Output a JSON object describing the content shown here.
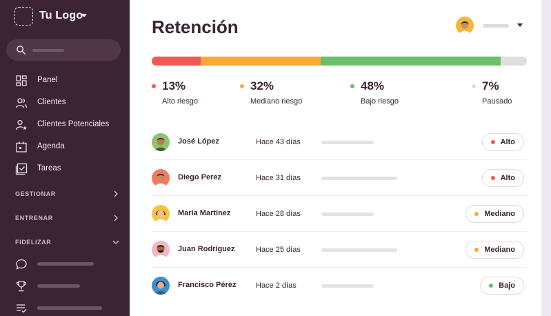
{
  "colors": {
    "sidebar_bg": "#3b2433",
    "high": "#ef5a57",
    "medium": "#fba83a",
    "low": "#6bbf6b",
    "paused": "#dedede"
  },
  "sidebar": {
    "logo_text": "Tu Logo",
    "nav": [
      {
        "label": "Panel",
        "icon": "dashboard-icon"
      },
      {
        "label": "Clientes",
        "icon": "users-icon"
      },
      {
        "label": "Clientes Potenciales",
        "icon": "user-star-icon"
      },
      {
        "label": "Agenda",
        "icon": "calendar-icon"
      },
      {
        "label": "Tareas",
        "icon": "checkbox-icon"
      }
    ],
    "sections": [
      {
        "label": "GESTIONAR",
        "icon": "chevron-right-icon"
      },
      {
        "label": "ENTRENAR",
        "icon": "chevron-right-icon"
      },
      {
        "label": "FIDELIZAR",
        "icon": "chevron-down-icon"
      }
    ],
    "fidelizar_items": [
      {
        "icon": "chat-icon"
      },
      {
        "icon": "trophy-icon"
      },
      {
        "icon": "list-check-icon"
      }
    ]
  },
  "main": {
    "title": "Retención",
    "stats": [
      {
        "pct": "13%",
        "label": "Alto riesgo",
        "value": 0.13
      },
      {
        "pct": "32%",
        "label": "Mediano riesgo",
        "value": 0.32
      },
      {
        "pct": "48%",
        "label": "Bajo riesgo",
        "value": 0.48
      },
      {
        "pct": "7%",
        "label": "Pausado",
        "value": 0.07
      }
    ],
    "rows": [
      {
        "name": "José López",
        "date": "Hace 43 días",
        "badge": "Alto",
        "level": "high"
      },
      {
        "name": "Diego Perez",
        "date": "Hace 31 días",
        "badge": "Alto",
        "level": "high"
      },
      {
        "name": "María Martínez",
        "date": "Hace 28 días",
        "badge": "Mediano",
        "level": "medium"
      },
      {
        "name": "Juan Rodríguez",
        "date": "Hace 25 días",
        "badge": "Mediano",
        "level": "medium"
      },
      {
        "name": "Francisco Pérez",
        "date": "Hace 2 días",
        "badge": "Bajo",
        "level": "low"
      }
    ]
  }
}
